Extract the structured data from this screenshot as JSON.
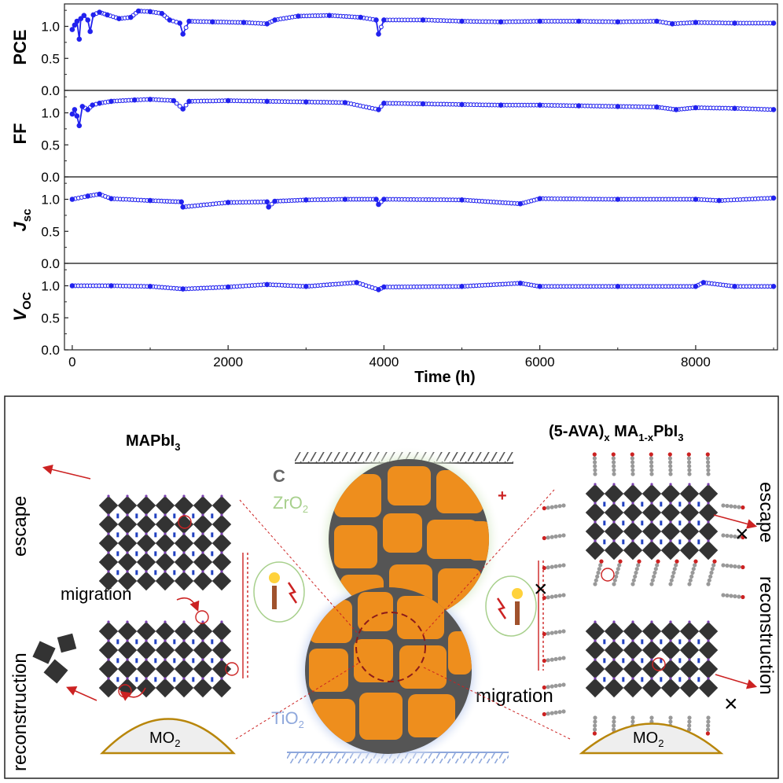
{
  "chart_data": {
    "type": "line",
    "xlabel": "Time (h)",
    "x_ticks": [
      0,
      2000,
      4000,
      6000,
      8000
    ],
    "xlim": [
      -100,
      9050
    ],
    "y_ticks": [
      "0.0",
      "0.5",
      "1.0"
    ],
    "ylim": [
      0,
      1.35
    ],
    "marker_color": "#2222ee",
    "panels": [
      {
        "ylabel": "PCE",
        "ylabel_sub": "",
        "series": [
          {
            "x": 0,
            "y": 0.95
          },
          {
            "x": 30,
            "y": 1.02
          },
          {
            "x": 60,
            "y": 1.08
          },
          {
            "x": 90,
            "y": 0.8
          },
          {
            "x": 110,
            "y": 1.12
          },
          {
            "x": 150,
            "y": 1.17
          },
          {
            "x": 200,
            "y": 1.1
          },
          {
            "x": 230,
            "y": 0.92
          },
          {
            "x": 270,
            "y": 1.18
          },
          {
            "x": 350,
            "y": 1.22
          },
          {
            "x": 450,
            "y": 1.18
          },
          {
            "x": 600,
            "y": 1.12
          },
          {
            "x": 750,
            "y": 1.14
          },
          {
            "x": 850,
            "y": 1.24
          },
          {
            "x": 1000,
            "y": 1.23
          },
          {
            "x": 1150,
            "y": 1.2
          },
          {
            "x": 1250,
            "y": 1.1
          },
          {
            "x": 1380,
            "y": 1.05
          },
          {
            "x": 1420,
            "y": 0.88
          },
          {
            "x": 1500,
            "y": 1.08
          },
          {
            "x": 1800,
            "y": 1.07
          },
          {
            "x": 2200,
            "y": 1.06
          },
          {
            "x": 2500,
            "y": 1.04
          },
          {
            "x": 2600,
            "y": 1.1
          },
          {
            "x": 2900,
            "y": 1.16
          },
          {
            "x": 3300,
            "y": 1.17
          },
          {
            "x": 3700,
            "y": 1.14
          },
          {
            "x": 3900,
            "y": 1.1
          },
          {
            "x": 3930,
            "y": 0.88
          },
          {
            "x": 4000,
            "y": 1.1
          },
          {
            "x": 4500,
            "y": 1.1
          },
          {
            "x": 5000,
            "y": 1.08
          },
          {
            "x": 5500,
            "y": 1.07
          },
          {
            "x": 6000,
            "y": 1.08
          },
          {
            "x": 6500,
            "y": 1.08
          },
          {
            "x": 7000,
            "y": 1.07
          },
          {
            "x": 7500,
            "y": 1.08
          },
          {
            "x": 7700,
            "y": 1.04
          },
          {
            "x": 8000,
            "y": 1.06
          },
          {
            "x": 8500,
            "y": 1.05
          },
          {
            "x": 9000,
            "y": 1.05
          }
        ]
      },
      {
        "ylabel": "FF",
        "ylabel_sub": "",
        "series": [
          {
            "x": 0,
            "y": 0.98
          },
          {
            "x": 30,
            "y": 1.05
          },
          {
            "x": 60,
            "y": 0.95
          },
          {
            "x": 90,
            "y": 0.8
          },
          {
            "x": 130,
            "y": 1.1
          },
          {
            "x": 200,
            "y": 1.05
          },
          {
            "x": 260,
            "y": 1.12
          },
          {
            "x": 350,
            "y": 1.15
          },
          {
            "x": 500,
            "y": 1.18
          },
          {
            "x": 800,
            "y": 1.2
          },
          {
            "x": 1000,
            "y": 1.21
          },
          {
            "x": 1300,
            "y": 1.19
          },
          {
            "x": 1420,
            "y": 1.06
          },
          {
            "x": 1500,
            "y": 1.18
          },
          {
            "x": 2000,
            "y": 1.19
          },
          {
            "x": 2500,
            "y": 1.18
          },
          {
            "x": 3000,
            "y": 1.17
          },
          {
            "x": 3500,
            "y": 1.16
          },
          {
            "x": 3930,
            "y": 1.05
          },
          {
            "x": 4000,
            "y": 1.15
          },
          {
            "x": 4500,
            "y": 1.14
          },
          {
            "x": 5000,
            "y": 1.13
          },
          {
            "x": 5500,
            "y": 1.12
          },
          {
            "x": 6000,
            "y": 1.12
          },
          {
            "x": 6500,
            "y": 1.11
          },
          {
            "x": 7000,
            "y": 1.1
          },
          {
            "x": 7500,
            "y": 1.09
          },
          {
            "x": 7750,
            "y": 1.05
          },
          {
            "x": 8000,
            "y": 1.08
          },
          {
            "x": 8500,
            "y": 1.07
          },
          {
            "x": 9000,
            "y": 1.05
          }
        ]
      },
      {
        "ylabel": "J",
        "ylabel_sub": "sc",
        "series": [
          {
            "x": 0,
            "y": 1.0
          },
          {
            "x": 200,
            "y": 1.05
          },
          {
            "x": 350,
            "y": 1.08
          },
          {
            "x": 500,
            "y": 1.01
          },
          {
            "x": 1000,
            "y": 0.98
          },
          {
            "x": 1400,
            "y": 0.96
          },
          {
            "x": 1420,
            "y": 0.88
          },
          {
            "x": 2000,
            "y": 0.95
          },
          {
            "x": 2500,
            "y": 0.96
          },
          {
            "x": 2520,
            "y": 0.88
          },
          {
            "x": 2600,
            "y": 0.97
          },
          {
            "x": 3000,
            "y": 0.99
          },
          {
            "x": 3500,
            "y": 1.0
          },
          {
            "x": 3900,
            "y": 1.0
          },
          {
            "x": 3930,
            "y": 0.92
          },
          {
            "x": 4000,
            "y": 1.0
          },
          {
            "x": 5000,
            "y": 0.99
          },
          {
            "x": 5750,
            "y": 0.93
          },
          {
            "x": 6000,
            "y": 1.01
          },
          {
            "x": 7000,
            "y": 1.0
          },
          {
            "x": 8000,
            "y": 1.0
          },
          {
            "x": 8300,
            "y": 0.98
          },
          {
            "x": 9000,
            "y": 1.02
          }
        ]
      },
      {
        "ylabel": "V",
        "ylabel_sub": "OC",
        "series": [
          {
            "x": 0,
            "y": 1.0
          },
          {
            "x": 500,
            "y": 1.0
          },
          {
            "x": 1000,
            "y": 0.99
          },
          {
            "x": 1420,
            "y": 0.95
          },
          {
            "x": 2000,
            "y": 0.98
          },
          {
            "x": 2500,
            "y": 1.02
          },
          {
            "x": 3000,
            "y": 0.99
          },
          {
            "x": 3650,
            "y": 1.05
          },
          {
            "x": 3930,
            "y": 0.94
          },
          {
            "x": 4000,
            "y": 0.98
          },
          {
            "x": 5000,
            "y": 0.99
          },
          {
            "x": 5750,
            "y": 1.04
          },
          {
            "x": 6000,
            "y": 0.99
          },
          {
            "x": 7000,
            "y": 0.99
          },
          {
            "x": 8000,
            "y": 0.99
          },
          {
            "x": 8100,
            "y": 1.05
          },
          {
            "x": 8500,
            "y": 0.99
          },
          {
            "x": 9000,
            "y": 0.99
          }
        ]
      }
    ]
  },
  "scheme": {
    "left_title": "MAPbI",
    "left_title_sub": "3",
    "right_title_main": "(5-AVA)",
    "right_title_x": "x",
    "right_title_mid": " MA",
    "right_title_sub2": "1-x",
    "right_title_end": "PbI",
    "right_title_sub3": "3",
    "label_escape": "escape",
    "label_reconstruction": "reconstruction",
    "label_migration": "migration",
    "label_c": "C",
    "label_zro2": "ZrO",
    "label_zro2_sub": "2",
    "label_tio2": "TiO",
    "label_tio2_sub": "2",
    "label_mo2": "MO",
    "label_mo2_sub": "2",
    "plus_sign": "+",
    "blocked_mark": "×",
    "color_perovskite": "#333333",
    "color_grain": "#ee8e1d",
    "color_arrow": "#cc2222",
    "color_zro2": "#a8d08d",
    "color_tio2": "#8fa8dc",
    "color_mo2": "#b8860b"
  }
}
